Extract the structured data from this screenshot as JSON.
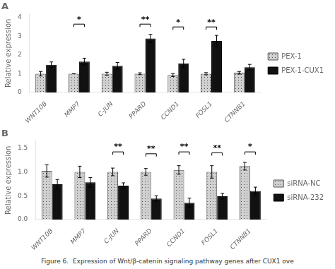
{
  "chart_data": [
    {
      "type": "bar",
      "title": "A",
      "categories": [
        "WNT10B",
        "MMP7",
        "C-JUN",
        "PPARD",
        "CCND1",
        "FOSL1",
        "CTNNB1"
      ],
      "series": [
        {
          "name": "PEX-1",
          "color": "#d0d0d0",
          "values": [
            1.0,
            1.0,
            1.0,
            1.0,
            0.93,
            1.0,
            1.05
          ],
          "errors": [
            0.12,
            0.0,
            0.08,
            0.05,
            0.08,
            0.06,
            0.07
          ]
        },
        {
          "name": "PEX-1-CUX1",
          "color": "#111111",
          "values": [
            1.48,
            1.65,
            1.42,
            2.88,
            1.55,
            2.75,
            1.35
          ],
          "errors": [
            0.15,
            0.18,
            0.18,
            0.22,
            0.22,
            0.3,
            0.15
          ]
        }
      ],
      "y_label": "Relative expression",
      "ylim": [
        0,
        4.2
      ],
      "yticks": [
        0,
        1,
        2,
        3,
        4
      ],
      "annotations": [
        {
          "category": "MMP7",
          "text": "*",
          "y": 3.65
        },
        {
          "category": "PPARD",
          "text": "**",
          "y": 3.65
        },
        {
          "category": "CCND1",
          "text": "*",
          "y": 3.5
        },
        {
          "category": "FOSL1",
          "text": "**",
          "y": 3.5
        }
      ],
      "grid": false,
      "legend": "right"
    },
    {
      "type": "bar",
      "title": "B",
      "categories": [
        "WNT10B",
        "MMP7",
        "C-JUN",
        "PPARD",
        "CCND1",
        "FOSL1",
        "CTNNB1"
      ],
      "series": [
        {
          "name": "siRNA-NC",
          "color": "#d0d0d0",
          "values": [
            1.02,
            1.0,
            1.0,
            1.0,
            1.04,
            1.0,
            1.12
          ],
          "errors": [
            0.13,
            0.12,
            0.08,
            0.07,
            0.09,
            0.13,
            0.08
          ]
        },
        {
          "name": "siRNA-232",
          "color": "#111111",
          "values": [
            0.74,
            0.78,
            0.71,
            0.44,
            0.35,
            0.49,
            0.6
          ],
          "errors": [
            0.1,
            0.1,
            0.06,
            0.06,
            0.1,
            0.06,
            0.08
          ]
        }
      ],
      "y_label": "Relative expression",
      "ylim": [
        0,
        1.65
      ],
      "yticks": [
        {
          "value": 0,
          "label": "0.0"
        },
        {
          "value": 0.5,
          "label": "0.5"
        },
        {
          "value": 1,
          "label": "1.0"
        },
        {
          "value": 1.5,
          "label": "1.5"
        }
      ],
      "annotations": [
        {
          "category": "C-JUN",
          "text": "**",
          "y": 1.42
        },
        {
          "category": "PPARD",
          "text": "**",
          "y": 1.38
        },
        {
          "category": "CCND1",
          "text": "**",
          "y": 1.42
        },
        {
          "category": "FOSL1",
          "text": "**",
          "y": 1.4
        },
        {
          "category": "CTNNB1",
          "text": "*",
          "y": 1.42
        }
      ],
      "grid": false,
      "legend": "right"
    }
  ],
  "caption": "Figure 6.  Expression of Wnt/β-catenin signaling pathway genes after CUX1 ove"
}
